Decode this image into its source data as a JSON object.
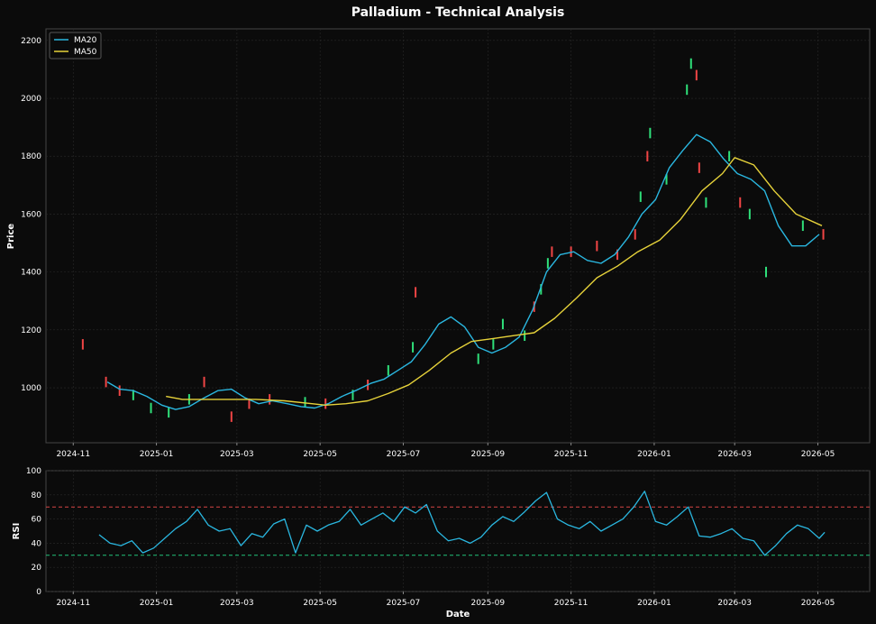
{
  "colors": {
    "background": "#0b0b0b",
    "panel": "#0b0b0b",
    "grid": "#2a2a2a",
    "axis": "#444444",
    "text": "#ffffff",
    "ma20": "#2ab7e0",
    "ma50": "#e6d23a",
    "up": "#2fe07a",
    "down": "#f04545",
    "rsi": "#2ab7e0",
    "overbought": "#d64545",
    "oversold": "#22c27a"
  },
  "chart_data": [
    {
      "type": "line",
      "title": "Palladium - Technical Analysis",
      "xlabel": "",
      "ylabel": "Price",
      "ylim": [
        810,
        2240
      ],
      "xlim": [
        "2024-10-12",
        "2026-06-08"
      ],
      "x_ticks": [
        "2024-11-01",
        "2025-01-01",
        "2025-03-01",
        "2025-05-01",
        "2025-07-01",
        "2025-09-01",
        "2025-11-01",
        "2026-01-01",
        "2026-03-01",
        "2026-05-01"
      ],
      "x_tick_labels": [
        "2024-11",
        "2025-01",
        "2025-03",
        "2025-05",
        "2025-07",
        "2025-09",
        "2025-11",
        "2026-01",
        "2026-03",
        "2026-05"
      ],
      "y_ticks": [
        1000,
        1200,
        1400,
        1600,
        1800,
        2000,
        2200
      ],
      "grid": true,
      "legend": "top-left",
      "series": [
        {
          "name": "MA20",
          "x": [
            "2024-11-26",
            "2024-12-05",
            "2024-12-15",
            "2024-12-25",
            "2025-01-05",
            "2025-01-15",
            "2025-01-25",
            "2025-02-05",
            "2025-02-15",
            "2025-02-25",
            "2025-03-07",
            "2025-03-17",
            "2025-03-27",
            "2025-04-07",
            "2025-04-17",
            "2025-04-27",
            "2025-05-07",
            "2025-05-17",
            "2025-05-27",
            "2025-06-07",
            "2025-06-17",
            "2025-06-27",
            "2025-07-07",
            "2025-07-17",
            "2025-07-27",
            "2025-08-05",
            "2025-08-15",
            "2025-08-25",
            "2025-09-04",
            "2025-09-14",
            "2025-09-24",
            "2025-10-04",
            "2025-10-14",
            "2025-10-24",
            "2025-11-03",
            "2025-11-13",
            "2025-11-23",
            "2025-12-03",
            "2025-12-13",
            "2025-12-23",
            "2026-01-02",
            "2026-01-12",
            "2026-01-22",
            "2026-02-01",
            "2026-02-11",
            "2026-02-21",
            "2026-03-03",
            "2026-03-13",
            "2026-03-23",
            "2026-04-02",
            "2026-04-12",
            "2026-04-22",
            "2026-05-02"
          ],
          "values": [
            1020,
            995,
            990,
            970,
            940,
            925,
            935,
            965,
            990,
            995,
            965,
            945,
            955,
            945,
            935,
            930,
            945,
            970,
            990,
            1015,
            1030,
            1060,
            1090,
            1150,
            1220,
            1245,
            1210,
            1140,
            1120,
            1140,
            1175,
            1270,
            1400,
            1460,
            1470,
            1440,
            1430,
            1460,
            1520,
            1600,
            1650,
            1760,
            1820,
            1875,
            1850,
            1790,
            1740,
            1720,
            1680,
            1560,
            1490,
            1490,
            1530
          ]
        },
        {
          "name": "MA50",
          "x": [
            "2025-01-08",
            "2025-01-20",
            "2025-02-05",
            "2025-02-25",
            "2025-03-15",
            "2025-04-05",
            "2025-04-25",
            "2025-05-05",
            "2025-05-20",
            "2025-06-05",
            "2025-06-20",
            "2025-07-05",
            "2025-07-20",
            "2025-08-05",
            "2025-08-20",
            "2025-09-05",
            "2025-09-20",
            "2025-10-05",
            "2025-10-20",
            "2025-11-05",
            "2025-11-20",
            "2025-12-05",
            "2025-12-20",
            "2026-01-05",
            "2026-01-20",
            "2026-02-05",
            "2026-02-20",
            "2026-03-01",
            "2026-03-15",
            "2026-03-30",
            "2026-04-15",
            "2026-05-04"
          ],
          "values": [
            970,
            960,
            960,
            960,
            960,
            955,
            945,
            940,
            945,
            955,
            980,
            1010,
            1060,
            1120,
            1160,
            1170,
            1180,
            1190,
            1240,
            1310,
            1380,
            1420,
            1470,
            1510,
            1580,
            1680,
            1740,
            1795,
            1770,
            1680,
            1600,
            1560
          ]
        }
      ],
      "candles": [
        {
          "x": "2024-11-08",
          "value": 1150,
          "dir": "down"
        },
        {
          "x": "2024-11-25",
          "value": 1020,
          "dir": "down"
        },
        {
          "x": "2024-12-05",
          "value": 990,
          "dir": "down"
        },
        {
          "x": "2024-12-15",
          "value": 975,
          "dir": "up"
        },
        {
          "x": "2024-12-28",
          "value": 930,
          "dir": "up"
        },
        {
          "x": "2025-01-10",
          "value": 915,
          "dir": "up"
        },
        {
          "x": "2025-01-25",
          "value": 960,
          "dir": "up"
        },
        {
          "x": "2025-02-05",
          "value": 1020,
          "dir": "down"
        },
        {
          "x": "2025-02-25",
          "value": 900,
          "dir": "down"
        },
        {
          "x": "2025-03-10",
          "value": 945,
          "dir": "down"
        },
        {
          "x": "2025-03-25",
          "value": 960,
          "dir": "down"
        },
        {
          "x": "2025-04-20",
          "value": 950,
          "dir": "up"
        },
        {
          "x": "2025-05-05",
          "value": 945,
          "dir": "down"
        },
        {
          "x": "2025-05-25",
          "value": 975,
          "dir": "up"
        },
        {
          "x": "2025-06-05",
          "value": 1010,
          "dir": "down"
        },
        {
          "x": "2025-06-20",
          "value": 1060,
          "dir": "up"
        },
        {
          "x": "2025-07-08",
          "value": 1140,
          "dir": "up"
        },
        {
          "x": "2025-07-10",
          "value": 1330,
          "dir": "down"
        },
        {
          "x": "2025-08-25",
          "value": 1100,
          "dir": "up"
        },
        {
          "x": "2025-09-05",
          "value": 1150,
          "dir": "up"
        },
        {
          "x": "2025-09-12",
          "value": 1220,
          "dir": "up"
        },
        {
          "x": "2025-09-28",
          "value": 1180,
          "dir": "up"
        },
        {
          "x": "2025-10-05",
          "value": 1280,
          "dir": "down"
        },
        {
          "x": "2025-10-10",
          "value": 1340,
          "dir": "up"
        },
        {
          "x": "2025-10-15",
          "value": 1430,
          "dir": "up"
        },
        {
          "x": "2025-10-18",
          "value": 1470,
          "dir": "down"
        },
        {
          "x": "2025-11-01",
          "value": 1470,
          "dir": "down"
        },
        {
          "x": "2025-11-20",
          "value": 1490,
          "dir": "down"
        },
        {
          "x": "2025-12-05",
          "value": 1460,
          "dir": "down"
        },
        {
          "x": "2025-12-18",
          "value": 1530,
          "dir": "down"
        },
        {
          "x": "2025-12-22",
          "value": 1660,
          "dir": "up"
        },
        {
          "x": "2025-12-27",
          "value": 1800,
          "dir": "down"
        },
        {
          "x": "2025-12-29",
          "value": 1880,
          "dir": "up"
        },
        {
          "x": "2026-01-10",
          "value": 1720,
          "dir": "up"
        },
        {
          "x": "2026-01-25",
          "value": 2030,
          "dir": "up"
        },
        {
          "x": "2026-01-28",
          "value": 2120,
          "dir": "up"
        },
        {
          "x": "2026-02-01",
          "value": 2080,
          "dir": "down"
        },
        {
          "x": "2026-02-03",
          "value": 1760,
          "dir": "down"
        },
        {
          "x": "2026-02-08",
          "value": 1640,
          "dir": "up"
        },
        {
          "x": "2026-02-25",
          "value": 1800,
          "dir": "up"
        },
        {
          "x": "2026-03-05",
          "value": 1640,
          "dir": "down"
        },
        {
          "x": "2026-03-12",
          "value": 1600,
          "dir": "up"
        },
        {
          "x": "2026-03-24",
          "value": 1400,
          "dir": "up"
        },
        {
          "x": "2026-04-20",
          "value": 1560,
          "dir": "up"
        },
        {
          "x": "2026-05-05",
          "value": 1530,
          "dir": "down"
        }
      ]
    },
    {
      "type": "line",
      "title": "",
      "xlabel": "Date",
      "ylabel": "RSI",
      "ylim": [
        0,
        100
      ],
      "xlim": [
        "2024-10-12",
        "2026-06-08"
      ],
      "y_ticks": [
        0,
        20,
        40,
        60,
        80,
        100
      ],
      "x_ticks": [
        "2024-11-01",
        "2025-01-01",
        "2025-03-01",
        "2025-05-01",
        "2025-07-01",
        "2025-09-01",
        "2025-11-01",
        "2026-01-01",
        "2026-03-01",
        "2026-05-01"
      ],
      "x_tick_labels": [
        "2024-11",
        "2025-01",
        "2025-03",
        "2025-05",
        "2025-07",
        "2025-09",
        "2025-11",
        "2026-01",
        "2026-03",
        "2026-05"
      ],
      "reference_lines": [
        70,
        30
      ],
      "grid": true,
      "series": [
        {
          "name": "RSI",
          "x": [
            "2024-11-20",
            "2024-11-28",
            "2024-12-06",
            "2024-12-14",
            "2024-12-22",
            "2024-12-30",
            "2025-01-07",
            "2025-01-15",
            "2025-01-23",
            "2025-01-31",
            "2025-02-08",
            "2025-02-16",
            "2025-02-24",
            "2025-03-04",
            "2025-03-12",
            "2025-03-20",
            "2025-03-28",
            "2025-04-05",
            "2025-04-13",
            "2025-04-21",
            "2025-04-29",
            "2025-05-07",
            "2025-05-15",
            "2025-05-23",
            "2025-05-31",
            "2025-06-08",
            "2025-06-16",
            "2025-06-24",
            "2025-07-02",
            "2025-07-10",
            "2025-07-18",
            "2025-07-26",
            "2025-08-03",
            "2025-08-11",
            "2025-08-19",
            "2025-08-27",
            "2025-09-04",
            "2025-09-12",
            "2025-09-20",
            "2025-09-28",
            "2025-10-06",
            "2025-10-14",
            "2025-10-22",
            "2025-10-30",
            "2025-11-07",
            "2025-11-15",
            "2025-11-23",
            "2025-12-01",
            "2025-12-09",
            "2025-12-17",
            "2025-12-25",
            "2026-01-02",
            "2026-01-10",
            "2026-01-18",
            "2026-01-26",
            "2026-02-03",
            "2026-02-11",
            "2026-02-19",
            "2026-02-27",
            "2026-03-07",
            "2026-03-15",
            "2026-03-23",
            "2026-03-31",
            "2026-04-08",
            "2026-04-16",
            "2026-04-24",
            "2026-05-02",
            "2026-05-06"
          ],
          "values": [
            47,
            40,
            38,
            42,
            32,
            36,
            44,
            52,
            58,
            68,
            55,
            50,
            52,
            38,
            48,
            45,
            56,
            60,
            32,
            55,
            50,
            55,
            58,
            68,
            55,
            60,
            65,
            58,
            70,
            65,
            72,
            50,
            42,
            44,
            40,
            45,
            55,
            62,
            58,
            66,
            75,
            82,
            60,
            55,
            52,
            58,
            50,
            55,
            60,
            70,
            83,
            58,
            55,
            62,
            70,
            46,
            45,
            48,
            52,
            44,
            42,
            30,
            38,
            48,
            55,
            52,
            44,
            49
          ]
        }
      ]
    }
  ],
  "legend": {
    "items": [
      {
        "label": "MA20",
        "color": "#2ab7e0"
      },
      {
        "label": "MA50",
        "color": "#e6d23a"
      }
    ]
  }
}
